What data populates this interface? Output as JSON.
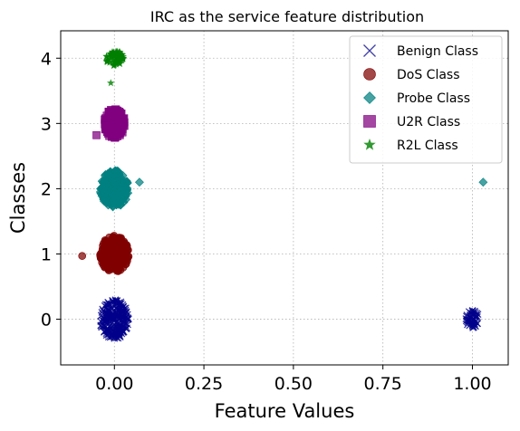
{
  "chart_data": {
    "type": "scatter",
    "title": "IRC as the service feature distribution",
    "xlabel": "Feature Values",
    "ylabel": "Classes",
    "xlim": [
      -0.15,
      1.1
    ],
    "ylim": [
      -0.7,
      4.42
    ],
    "xticks": [
      0.0,
      0.25,
      0.5,
      0.75,
      1.0
    ],
    "xtick_labels": [
      "0.00",
      "0.25",
      "0.50",
      "0.75",
      "1.00"
    ],
    "yticks": [
      0,
      1,
      2,
      3,
      4
    ],
    "ytick_labels": [
      "0",
      "1",
      "2",
      "3",
      "4"
    ],
    "grid": true,
    "legend_position": "top-right",
    "series": [
      {
        "name": "Benign Class",
        "marker": "x",
        "color": "#00008b",
        "class_value": 0,
        "clusters": [
          {
            "x_center": 0.0,
            "x_spread": 0.04,
            "y_spread": 0.3,
            "count": 1
          },
          {
            "x_center": 1.0,
            "x_spread": 0.018,
            "y_spread": 0.14,
            "count": 1
          }
        ]
      },
      {
        "name": "DoS Class",
        "marker": "circle",
        "color": "#800000",
        "class_value": 1,
        "clusters": [
          {
            "x_center": 0.0,
            "x_spread": 0.04,
            "y_spread": 0.28,
            "count": 1
          }
        ],
        "points": [
          {
            "x": -0.09,
            "y": 0.97
          }
        ]
      },
      {
        "name": "Probe Class",
        "marker": "diamond",
        "color": "#008080",
        "class_value": 2,
        "clusters": [
          {
            "x_center": 0.0,
            "x_spread": 0.04,
            "y_spread": 0.28,
            "count": 1
          }
        ],
        "points": [
          {
            "x": 1.03,
            "y": 2.1
          },
          {
            "x": 0.07,
            "y": 2.1
          }
        ]
      },
      {
        "name": "U2R Class",
        "marker": "square",
        "color": "#800080",
        "class_value": 3,
        "clusters": [
          {
            "x_center": 0.0,
            "x_spread": 0.03,
            "y_spread": 0.22,
            "count": 1
          }
        ],
        "points": [
          {
            "x": -0.05,
            "y": 2.82
          }
        ]
      },
      {
        "name": "R2L Class",
        "marker": "star",
        "color": "#008000",
        "class_value": 4,
        "clusters": [
          {
            "x_center": 0.0,
            "x_spread": 0.025,
            "y_spread": 0.12,
            "count": 1
          }
        ],
        "points": [
          {
            "x": -0.01,
            "y": 3.62
          }
        ]
      }
    ]
  }
}
